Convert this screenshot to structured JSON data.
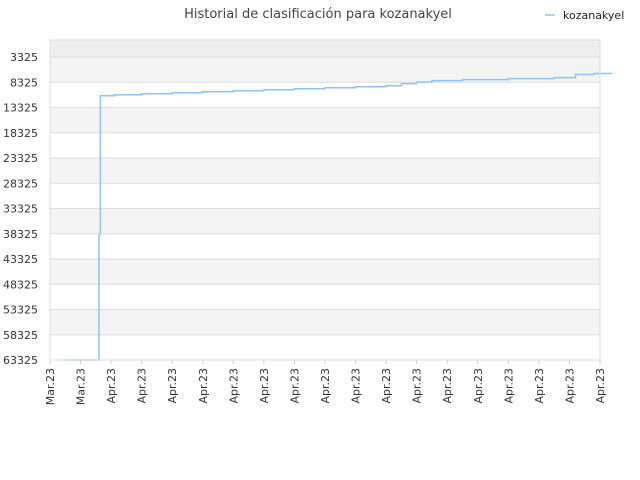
{
  "chart_data": {
    "type": "line",
    "title": "Historial de clasificación para kozanakyel",
    "xlabel": "",
    "ylabel": "",
    "y_inverted": true,
    "ylim": [
      63325,
      3325
    ],
    "y_ticks": [
      "3325",
      "8325",
      "13325",
      "18325",
      "23325",
      "28325",
      "33325",
      "38325",
      "43325",
      "48325",
      "53325",
      "58325",
      "63325"
    ],
    "x_ticks": [
      "Mar.23",
      "Mar.23",
      "Apr.23",
      "Apr.23",
      "Apr.23",
      "Apr.23",
      "Apr.23",
      "Apr.23",
      "Apr.23",
      "Apr.23",
      "Apr.23",
      "Apr.23",
      "Apr.23",
      "Apr.23",
      "Apr.23",
      "Apr.23",
      "Apr.23",
      "Apr.23",
      "Apr.23"
    ],
    "grid": true,
    "legend_position": "top-right",
    "line_color": "#8cc4f5",
    "series": [
      {
        "name": "kozanakyel",
        "points": [
          [
            0.5,
            63325
          ],
          [
            1.6,
            63325
          ],
          [
            1.6,
            38700
          ],
          [
            1.65,
            38300
          ],
          [
            1.65,
            11000
          ],
          [
            2.1,
            11000
          ],
          [
            2.1,
            10800
          ],
          [
            3.0,
            10800
          ],
          [
            3.0,
            10600
          ],
          [
            4.0,
            10600
          ],
          [
            4.0,
            10400
          ],
          [
            5.0,
            10400
          ],
          [
            5.0,
            10200
          ],
          [
            6.0,
            10200
          ],
          [
            6.0,
            10000
          ],
          [
            7.0,
            10000
          ],
          [
            7.0,
            9800
          ],
          [
            8.0,
            9800
          ],
          [
            8.0,
            9600
          ],
          [
            9.0,
            9600
          ],
          [
            9.0,
            9400
          ],
          [
            10.0,
            9400
          ],
          [
            10.0,
            9200
          ],
          [
            11.0,
            9200
          ],
          [
            11.0,
            9000
          ],
          [
            11.5,
            9000
          ],
          [
            11.5,
            8600
          ],
          [
            12.0,
            8600
          ],
          [
            12.0,
            8300
          ],
          [
            12.5,
            8300
          ],
          [
            12.5,
            8000
          ],
          [
            13.5,
            8000
          ],
          [
            13.5,
            7800
          ],
          [
            15.0,
            7800
          ],
          [
            15.0,
            7600
          ],
          [
            16.5,
            7600
          ],
          [
            16.5,
            7400
          ],
          [
            17.2,
            7400
          ],
          [
            17.2,
            6800
          ],
          [
            17.8,
            6800
          ],
          [
            17.8,
            6600
          ],
          [
            18.4,
            6600
          ]
        ]
      }
    ]
  }
}
